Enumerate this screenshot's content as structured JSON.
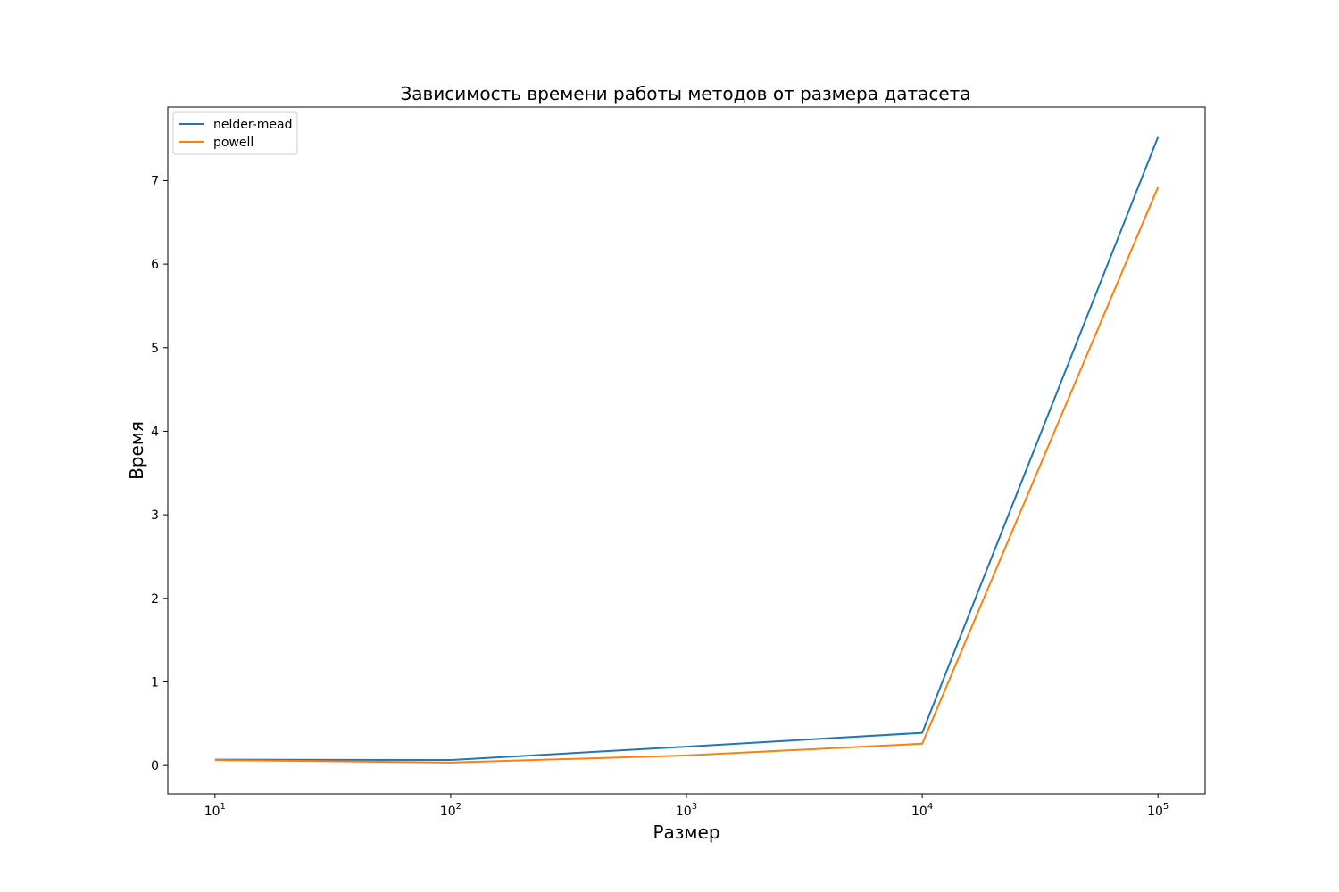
{
  "chart_data": {
    "type": "line",
    "title": "Зависимость времени работы методов от размера датасета",
    "xlabel": "Размер",
    "ylabel": "Время",
    "xscale": "log",
    "x": [
      10,
      100,
      1000,
      10000,
      100000
    ],
    "x_ticks": [
      {
        "value": 10,
        "base": "10",
        "exp": "1"
      },
      {
        "value": 100,
        "base": "10",
        "exp": "2"
      },
      {
        "value": 1000,
        "base": "10",
        "exp": "3"
      },
      {
        "value": 10000,
        "base": "10",
        "exp": "4"
      },
      {
        "value": 100000,
        "base": "10",
        "exp": "5"
      }
    ],
    "y_ticks": [
      0,
      1,
      2,
      3,
      4,
      5,
      6,
      7
    ],
    "xlim_log10": [
      0.8,
      5.2
    ],
    "ylim": [
      -0.34,
      7.88
    ],
    "grid": false,
    "legend_position": "top-left",
    "series": [
      {
        "name": "nelder-mead",
        "color": "#1f77b4",
        "values": [
          0.07,
          0.065,
          0.225,
          0.39,
          7.52
        ]
      },
      {
        "name": "powell",
        "color": "#ff7f0e",
        "values": [
          0.065,
          0.035,
          0.12,
          0.26,
          6.92
        ]
      }
    ]
  }
}
